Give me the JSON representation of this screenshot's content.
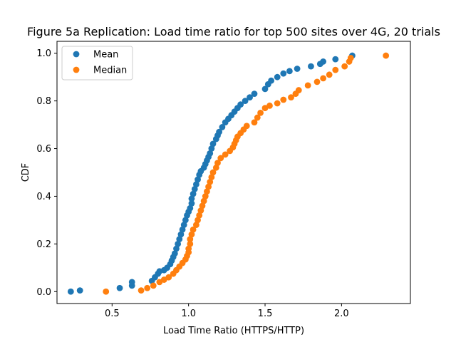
{
  "chart_data": {
    "type": "scatter",
    "title": "Figure 5a Replication: Load time ratio for top 500 sites over 4G, 20 trials",
    "xlabel": "Load Time Ratio (HTTPS/HTTP)",
    "ylabel": "CDF",
    "xlim": [
      0.14,
      2.45
    ],
    "ylim": [
      -0.05,
      1.05
    ],
    "xticks": [
      "0.5",
      "1.0",
      "1.5",
      "2.0"
    ],
    "yticks": [
      "0.0",
      "0.2",
      "0.4",
      "0.6",
      "0.8",
      "1.0"
    ],
    "grid": false,
    "legend_position": "top-left",
    "series": [
      {
        "name": "Mean",
        "color": "#1f77b4",
        "points": [
          [
            0.23,
            0.0
          ],
          [
            0.29,
            0.005
          ],
          [
            0.55,
            0.015
          ],
          [
            0.63,
            0.025
          ],
          [
            0.63,
            0.04
          ],
          [
            0.76,
            0.045
          ],
          [
            0.78,
            0.06
          ],
          [
            0.8,
            0.075
          ],
          [
            0.81,
            0.085
          ],
          [
            0.84,
            0.09
          ],
          [
            0.86,
            0.1
          ],
          [
            0.88,
            0.115
          ],
          [
            0.89,
            0.13
          ],
          [
            0.9,
            0.145
          ],
          [
            0.91,
            0.16
          ],
          [
            0.92,
            0.18
          ],
          [
            0.93,
            0.2
          ],
          [
            0.94,
            0.22
          ],
          [
            0.95,
            0.24
          ],
          [
            0.96,
            0.26
          ],
          [
            0.97,
            0.28
          ],
          [
            0.98,
            0.3
          ],
          [
            0.99,
            0.32
          ],
          [
            1.0,
            0.335
          ],
          [
            1.01,
            0.35
          ],
          [
            1.02,
            0.37
          ],
          [
            1.02,
            0.39
          ],
          [
            1.03,
            0.41
          ],
          [
            1.04,
            0.43
          ],
          [
            1.05,
            0.45
          ],
          [
            1.06,
            0.47
          ],
          [
            1.07,
            0.49
          ],
          [
            1.08,
            0.505
          ],
          [
            1.1,
            0.52
          ],
          [
            1.11,
            0.535
          ],
          [
            1.12,
            0.55
          ],
          [
            1.13,
            0.565
          ],
          [
            1.14,
            0.58
          ],
          [
            1.15,
            0.6
          ],
          [
            1.16,
            0.62
          ],
          [
            1.18,
            0.64
          ],
          [
            1.19,
            0.655
          ],
          [
            1.2,
            0.67
          ],
          [
            1.22,
            0.69
          ],
          [
            1.24,
            0.71
          ],
          [
            1.26,
            0.725
          ],
          [
            1.28,
            0.74
          ],
          [
            1.3,
            0.755
          ],
          [
            1.32,
            0.77
          ],
          [
            1.34,
            0.785
          ],
          [
            1.37,
            0.8
          ],
          [
            1.4,
            0.815
          ],
          [
            1.43,
            0.83
          ],
          [
            1.5,
            0.85
          ],
          [
            1.52,
            0.87
          ],
          [
            1.54,
            0.885
          ],
          [
            1.58,
            0.9
          ],
          [
            1.62,
            0.915
          ],
          [
            1.66,
            0.925
          ],
          [
            1.71,
            0.935
          ],
          [
            1.8,
            0.945
          ],
          [
            1.86,
            0.955
          ],
          [
            1.88,
            0.965
          ],
          [
            1.96,
            0.975
          ],
          [
            2.07,
            0.99
          ]
        ]
      },
      {
        "name": "Median",
        "color": "#ff7f0e",
        "points": [
          [
            0.46,
            0.0
          ],
          [
            0.69,
            0.005
          ],
          [
            0.73,
            0.015
          ],
          [
            0.77,
            0.025
          ],
          [
            0.81,
            0.04
          ],
          [
            0.84,
            0.05
          ],
          [
            0.87,
            0.06
          ],
          [
            0.9,
            0.075
          ],
          [
            0.92,
            0.09
          ],
          [
            0.94,
            0.105
          ],
          [
            0.96,
            0.12
          ],
          [
            0.98,
            0.135
          ],
          [
            0.99,
            0.15
          ],
          [
            1.0,
            0.165
          ],
          [
            1.0,
            0.18
          ],
          [
            1.01,
            0.2
          ],
          [
            1.01,
            0.22
          ],
          [
            1.02,
            0.24
          ],
          [
            1.03,
            0.26
          ],
          [
            1.05,
            0.28
          ],
          [
            1.06,
            0.3
          ],
          [
            1.07,
            0.32
          ],
          [
            1.08,
            0.34
          ],
          [
            1.09,
            0.36
          ],
          [
            1.1,
            0.38
          ],
          [
            1.11,
            0.4
          ],
          [
            1.12,
            0.42
          ],
          [
            1.13,
            0.44
          ],
          [
            1.14,
            0.46
          ],
          [
            1.15,
            0.48
          ],
          [
            1.16,
            0.5
          ],
          [
            1.18,
            0.52
          ],
          [
            1.19,
            0.54
          ],
          [
            1.21,
            0.56
          ],
          [
            1.24,
            0.575
          ],
          [
            1.27,
            0.59
          ],
          [
            1.29,
            0.605
          ],
          [
            1.3,
            0.62
          ],
          [
            1.31,
            0.635
          ],
          [
            1.32,
            0.65
          ],
          [
            1.34,
            0.665
          ],
          [
            1.36,
            0.68
          ],
          [
            1.38,
            0.695
          ],
          [
            1.43,
            0.71
          ],
          [
            1.45,
            0.73
          ],
          [
            1.47,
            0.75
          ],
          [
            1.5,
            0.77
          ],
          [
            1.53,
            0.78
          ],
          [
            1.58,
            0.79
          ],
          [
            1.62,
            0.805
          ],
          [
            1.67,
            0.815
          ],
          [
            1.7,
            0.83
          ],
          [
            1.72,
            0.845
          ],
          [
            1.78,
            0.865
          ],
          [
            1.84,
            0.88
          ],
          [
            1.88,
            0.895
          ],
          [
            1.92,
            0.91
          ],
          [
            1.96,
            0.93
          ],
          [
            2.02,
            0.945
          ],
          [
            2.05,
            0.965
          ],
          [
            2.06,
            0.98
          ],
          [
            2.29,
            0.99
          ]
        ]
      }
    ]
  }
}
